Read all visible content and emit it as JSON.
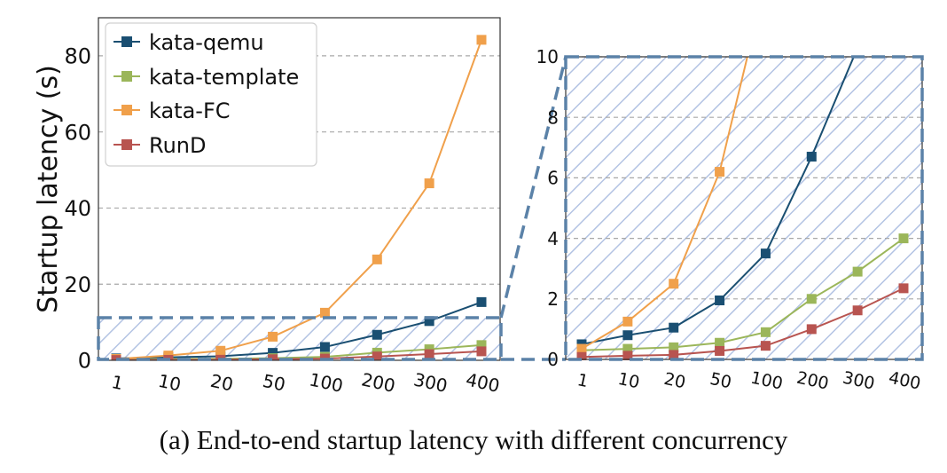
{
  "chart_data": [
    {
      "type": "line",
      "panel": "full",
      "categories": [
        "1",
        "10",
        "20",
        "50",
        "100",
        "200",
        "300",
        "400"
      ],
      "series": [
        {
          "name": "kata-qemu",
          "color": "#1a4f72",
          "values": [
            0.5,
            0.8,
            1.05,
            1.95,
            3.5,
            6.7,
            10.3,
            15.3
          ]
        },
        {
          "name": "kata-template",
          "color": "#9bb65a",
          "values": [
            0.3,
            0.35,
            0.4,
            0.55,
            0.9,
            2.0,
            2.9,
            4.0
          ]
        },
        {
          "name": "kata-FC",
          "color": "#f0a04b",
          "values": [
            0.35,
            1.25,
            2.5,
            6.2,
            12.5,
            26.5,
            46.5,
            84.2
          ]
        },
        {
          "name": "RunD",
          "color": "#b85450",
          "values": [
            0.08,
            0.12,
            0.15,
            0.28,
            0.45,
            1.0,
            1.62,
            2.35
          ]
        }
      ],
      "ylabel": "Startup latency (s)",
      "ylim": [
        0,
        90
      ],
      "yticks": [
        "0",
        "20",
        "40",
        "60",
        "80"
      ],
      "grid": "horizontal dashed",
      "legend": "top-left",
      "legend_labels": [
        "kata-qemu",
        "kata-template",
        "kata-FC",
        "RunD"
      ],
      "zoom_region": [
        0,
        11
      ]
    },
    {
      "type": "line",
      "panel": "zoomed",
      "categories": [
        "1",
        "10",
        "20",
        "50",
        "100",
        "200",
        "300",
        "400"
      ],
      "ylim": [
        0,
        10
      ],
      "yticks": [
        "0",
        "2",
        "4",
        "6",
        "8",
        "10"
      ],
      "grid": "horizontal dashed"
    }
  ],
  "caption": "(a) End-to-end startup latency with different concurrency"
}
